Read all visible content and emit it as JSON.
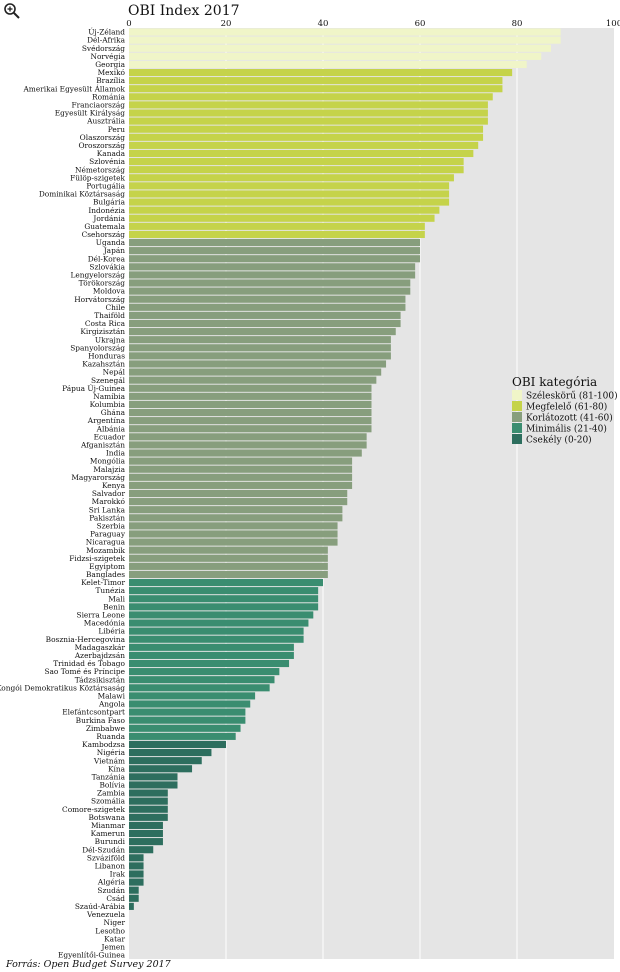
{
  "icon": "zoom-in-icon",
  "source": "Forrás: Open Budget Survey 2017",
  "colors": {
    "plot_bg": "#e5e5e5",
    "grid": "#ffffff",
    "cat1": "#f0f5c8",
    "cat2": "#c5d34a",
    "cat3": "#879e7d",
    "cat4": "#3a8d70",
    "cat5": "#2d6e5e"
  },
  "chart_data": {
    "type": "bar",
    "orientation": "horizontal",
    "title": "OBI Index 2017",
    "xlim": [
      0,
      100
    ],
    "xticks": [
      "0",
      "20",
      "40",
      "60",
      "80",
      "100"
    ],
    "grid": true,
    "legend": {
      "title": "OBI kategória",
      "placement": "right",
      "entries": [
        "Széleskörű (81-100)",
        "Megfelelő (61-80)",
        "Korlátozott (41-60)",
        "Minimális (21-40)",
        "Csekély (0-20)"
      ]
    },
    "categories": [
      "Új-Zéland",
      "Dél-Afrika",
      "Svédország",
      "Norvégia",
      "Georgia",
      "Mexikó",
      "Brazília",
      "Amerikai Egyesült Államok",
      "Románia",
      "Franciaország",
      "Egyesült Királyság",
      "Ausztrália",
      "Peru",
      "Olaszország",
      "Oroszország",
      "Kanada",
      "Szlovénia",
      "Németország",
      "Fülöp-szigetek",
      "Portugália",
      "Dominikai Köztársaság",
      "Bulgária",
      "Indonézia",
      "Jordánia",
      "Guatemala",
      "Csehország",
      "Uganda",
      "Japán",
      "Dél-Korea",
      "Szlovákia",
      "Lengyelország",
      "Törökország",
      "Moldova",
      "Horvátország",
      "Chile",
      "Thaiföld",
      "Costa Rica",
      "Kirgizisztán",
      "Ukrajna",
      "Spanyolország",
      "Honduras",
      "Kazahsztán",
      "Nepál",
      "Szenegál",
      "Pápua Új-Guinea",
      "Namíbia",
      "Kolumbia",
      "Ghána",
      "Argentína",
      "Albánia",
      "Ecuador",
      "Afganisztán",
      "India",
      "Mongólia",
      "Malajzia",
      "Magyarország",
      "Kenya",
      "Salvador",
      "Marokkó",
      "Sri Lanka",
      "Pakisztán",
      "Szerbia",
      "Paraguay",
      "Nicaragua",
      "Mozambik",
      "Fidzsi-szigetek",
      "Egyiptom",
      "Banglades",
      "Kelet-Timor",
      "Tunézia",
      "Mali",
      "Benin",
      "Sierra Leone",
      "Macedónia",
      "Libéria",
      "Bosznia-Hercegovina",
      "Madagaszkár",
      "Azerbajdzsán",
      "Trinidad és Tobago",
      "Sao Tomé és Príncipe",
      "Tádzsikisztán",
      "Kongói Demokratikus Köztársaság",
      "Malawi",
      "Angola",
      "Elefántcsontpart",
      "Burkina Faso",
      "Zimbabwe",
      "Ruanda",
      "Kambodzsa",
      "Nigéria",
      "Vietnám",
      "Kína",
      "Tanzánia",
      "Bolívia",
      "Zambia",
      "Szomália",
      "Comore-szigetek",
      "Botswana",
      "Mianmar",
      "Kamerun",
      "Burundi",
      "Dél-Szudán",
      "Szváziföld",
      "Libanon",
      "Irak",
      "Algéria",
      "Szudán",
      "Csád",
      "Szaúd-Arábia",
      "Venezuela",
      "Niger",
      "Lesotho",
      "Katar",
      "Jemen",
      "Egyenlítői-Guinea"
    ],
    "values": [
      89,
      89,
      87,
      85,
      82,
      79,
      77,
      77,
      75,
      74,
      74,
      74,
      73,
      73,
      72,
      71,
      69,
      69,
      67,
      66,
      66,
      66,
      64,
      63,
      61,
      61,
      60,
      60,
      60,
      59,
      59,
      58,
      58,
      57,
      57,
      56,
      56,
      55,
      54,
      54,
      54,
      53,
      52,
      51,
      50,
      50,
      50,
      50,
      50,
      50,
      49,
      49,
      48,
      46,
      46,
      46,
      46,
      45,
      45,
      44,
      44,
      43,
      43,
      43,
      41,
      41,
      41,
      41,
      40,
      39,
      39,
      39,
      38,
      37,
      36,
      36,
      34,
      34,
      33,
      31,
      30,
      29,
      26,
      25,
      24,
      24,
      23,
      22,
      20,
      17,
      15,
      13,
      10,
      10,
      8,
      8,
      8,
      8,
      7,
      7,
      7,
      5,
      3,
      3,
      3,
      3,
      2,
      2,
      1,
      0,
      0,
      0,
      0,
      0,
      0
    ],
    "category_index": [
      1,
      1,
      1,
      1,
      1,
      2,
      2,
      2,
      2,
      2,
      2,
      2,
      2,
      2,
      2,
      2,
      2,
      2,
      2,
      2,
      2,
      2,
      2,
      2,
      2,
      2,
      3,
      3,
      3,
      3,
      3,
      3,
      3,
      3,
      3,
      3,
      3,
      3,
      3,
      3,
      3,
      3,
      3,
      3,
      3,
      3,
      3,
      3,
      3,
      3,
      3,
      3,
      3,
      3,
      3,
      3,
      3,
      3,
      3,
      3,
      3,
      3,
      3,
      3,
      3,
      3,
      3,
      3,
      4,
      4,
      4,
      4,
      4,
      4,
      4,
      4,
      4,
      4,
      4,
      4,
      4,
      4,
      4,
      4,
      4,
      4,
      4,
      4,
      5,
      5,
      5,
      5,
      5,
      5,
      5,
      5,
      5,
      5,
      5,
      5,
      5,
      5,
      5,
      5,
      5,
      5,
      5,
      5,
      5,
      5,
      5,
      5,
      5,
      5,
      5
    ]
  }
}
